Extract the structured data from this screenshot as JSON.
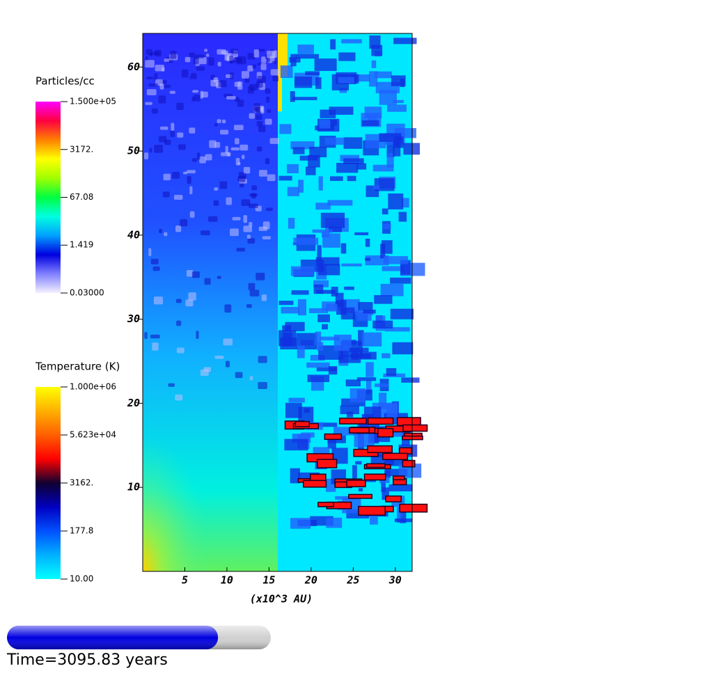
{
  "chart_data": {
    "type": "heatmap",
    "xlabel": "(x10^3 AU)",
    "xlim": [
      0,
      32
    ],
    "ylim": [
      0,
      64
    ],
    "xticks": [
      5,
      10,
      15,
      20,
      25,
      30
    ],
    "yticks": [
      10,
      20,
      30,
      40,
      50,
      60
    ],
    "colorbars": [
      {
        "title": "Particles/cc",
        "log": true,
        "lim": [
          0.03,
          150000
        ],
        "ticks": [
          {
            "value": 150000,
            "label": "1.500e+05"
          },
          {
            "value": 3172,
            "label": "3172."
          },
          67.08,
          1.419,
          {
            "value": 0.03,
            "label": "0.03000"
          }
        ],
        "colors": [
          "#f4f0ff",
          "#8080ff",
          "#0000e0",
          "#00a0ff",
          "#00ffe0",
          "#00ff40",
          "#a0ff00",
          "#ffff00",
          "#ff8000",
          "#ff0040",
          "#ff00ff"
        ]
      },
      {
        "title": "Temperature (K)",
        "log": true,
        "lim": [
          10,
          1000000
        ],
        "ticks": [
          {
            "value": 1000000,
            "label": "1.000e+06"
          },
          {
            "value": 56230,
            "label": "5.623e+04"
          },
          {
            "value": 3162,
            "label": "3162."
          },
          177.8,
          {
            "value": 10,
            "label": "10.00"
          }
        ],
        "colors": [
          "#00ffff",
          "#00b0ff",
          "#0050ff",
          "#0000c0",
          "#100030",
          "#ff0000",
          "#ff6000",
          "#ffb000",
          "#ffff00"
        ]
      }
    ],
    "time_label": "Time=3095.83 years",
    "progress": 0.8,
    "progress_color": "#0000e0"
  }
}
